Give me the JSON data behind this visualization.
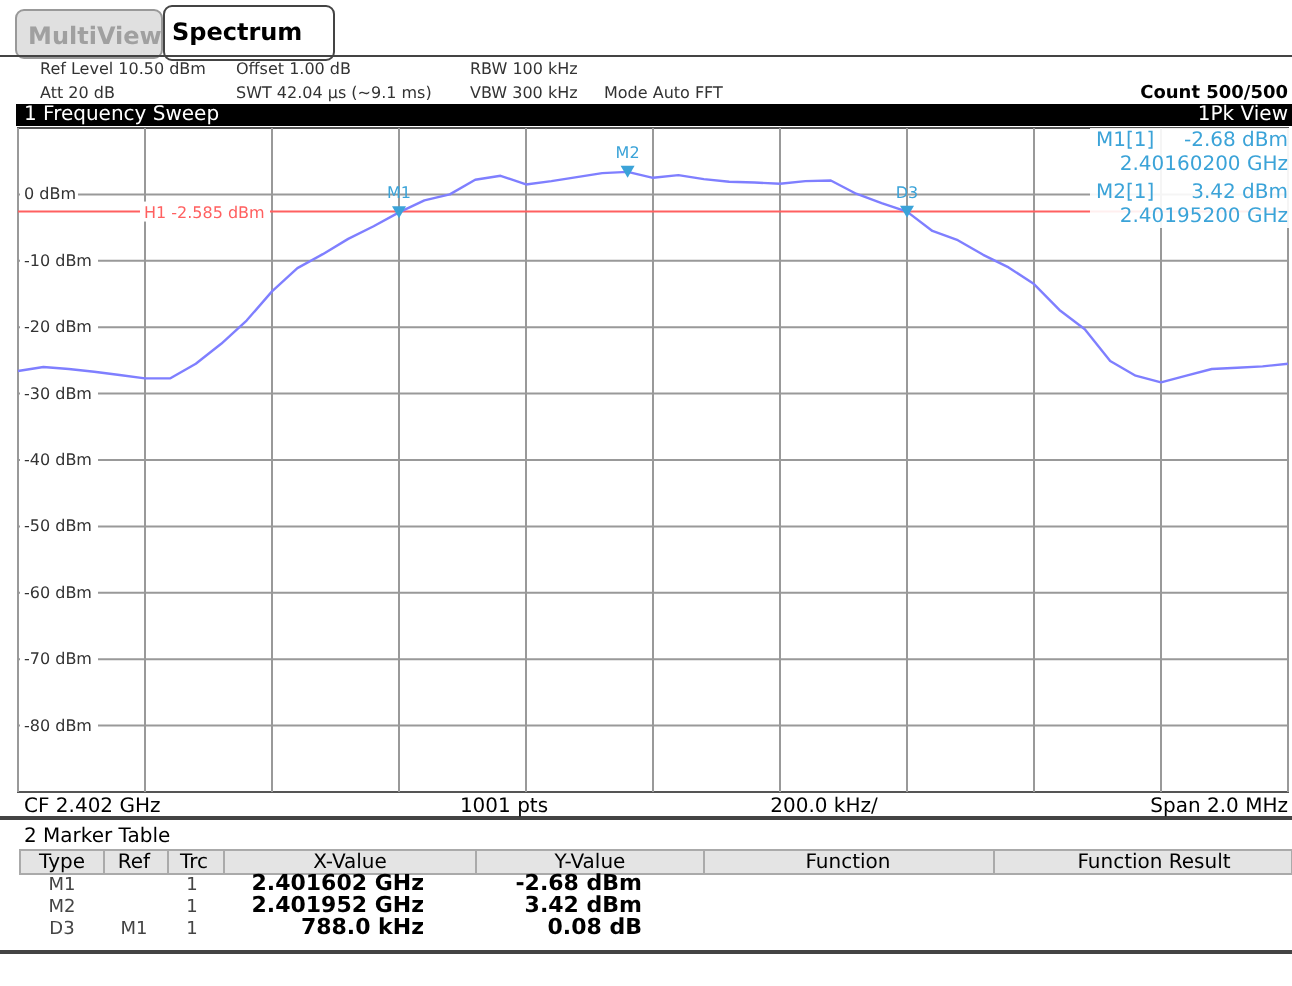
{
  "chart_data": {
    "type": "line",
    "categories": [
      null,
      null,
      null,
      null,
      null,
      null,
      null,
      null,
      null,
      null,
      null,
      null,
      null,
      null,
      null,
      null,
      null,
      null,
      null,
      null,
      null,
      null,
      null,
      null,
      null,
      null,
      null,
      null,
      null,
      null,
      null,
      null,
      null,
      null,
      null,
      null,
      null,
      null,
      null,
      null,
      null,
      null,
      null,
      null,
      null,
      null,
      null,
      null,
      null,
      null,
      null
    ],
    "series": [
      {
        "color": "#7f7fff",
        "values": [
          -26.6,
          -26.0,
          -26.3,
          -26.7,
          -27.2,
          -27.7,
          -27.7,
          -25.5,
          -22.5,
          -19.0,
          -14.6,
          -11.1,
          -9.0,
          -6.7,
          -4.8,
          -2.7,
          -0.9,
          0,
          2.2,
          2.8,
          1.5,
          2.0,
          2.6,
          3.2,
          3.4,
          2.5,
          2.9,
          2.3,
          1.9,
          1.8,
          1.6,
          2.0,
          2.1,
          0.1,
          -1.3,
          -2.6,
          -5.5,
          -6.9,
          -9.1,
          -11.0,
          -13.5,
          -17.4,
          -20.3,
          -25.1,
          -27.3,
          -28.3,
          -27.3,
          -26.3,
          -26.1,
          -25.9,
          -25.5
        ]
      },
      {
        "type": "scatter",
        "color": "#3ba3d8",
        "marker": "triangle",
        "values": [
          null,
          null,
          null,
          null,
          null,
          null,
          null,
          null,
          null,
          null,
          null,
          null,
          null,
          null,
          null,
          -2.7,
          null,
          null,
          null,
          null,
          null,
          null,
          null,
          null,
          3.4,
          null,
          null,
          null,
          null,
          null,
          null,
          null,
          null,
          null,
          null,
          -2.6,
          null,
          null,
          null,
          null,
          null,
          null,
          null,
          null,
          null,
          null,
          null,
          null,
          null,
          null,
          null
        ],
        "value_labels": [
          null,
          null,
          null,
          null,
          null,
          null,
          null,
          null,
          null,
          null,
          null,
          null,
          null,
          null,
          null,
          "M1",
          null,
          null,
          null,
          null,
          null,
          null,
          null,
          null,
          "M2",
          null,
          null,
          null,
          null,
          null,
          null,
          null,
          null,
          null,
          null,
          "D3",
          null,
          null,
          null,
          null,
          null,
          null,
          null,
          null,
          null,
          null,
          null,
          null,
          null,
          null,
          null
        ]
      }
    ],
    "ylim": [
      -90,
      10
    ],
    "yticks": [
      {
        "value": 0,
        "label": "0 dBm"
      },
      {
        "value": -10,
        "label": "-10 dBm"
      },
      {
        "value": -20,
        "label": "-20 dBm"
      },
      {
        "value": -30,
        "label": "-30 dBm"
      },
      {
        "value": -40,
        "label": "-40 dBm"
      },
      {
        "value": -50,
        "label": "-50 dBm"
      },
      {
        "value": -60,
        "label": "-60 dBm"
      },
      {
        "value": -70,
        "label": "-70 dBm"
      },
      {
        "value": -80,
        "label": "-80 dBm"
      }
    ],
    "grid": true,
    "ref_lines": [
      {
        "axis": "y",
        "value": -2.585,
        "label": "H1 -2.585 dBm",
        "color": "#ff6060"
      }
    ],
    "annotations": [
      "MultiView",
      "Spectrum",
      "Ref Level 10.50 dBm",
      "Att 20 dB",
      "Offset 1.00 dB",
      "SWT 42.04 µs (~9.1 ms)",
      "RBW 100 kHz",
      "VBW 300 kHz",
      "Mode Auto FFT",
      "Count 500/500",
      "1 Frequency Sweep",
      "1Pk View",
      "M1[1]",
      "-2.68 dBm",
      "2.40160200 GHz",
      "M2[1]",
      "3.42 dBm",
      "2.40195200 GHz",
      "CF 2.402 GHz",
      "1001 pts",
      "200.0 kHz/",
      "Span 2.0 MHz",
      "2 Marker Table",
      "Type",
      "Ref",
      "Trc",
      "X-Value",
      "Y-Value",
      "Function",
      "Function Result",
      "M1",
      "1",
      "2.401602 GHz",
      "-2.68 dBm",
      "M2",
      "1",
      "2.401952 GHz",
      "3.42 dBm",
      "D3",
      "M1",
      "1",
      "788.0 kHz",
      "0.08 dB"
    ]
  }
}
